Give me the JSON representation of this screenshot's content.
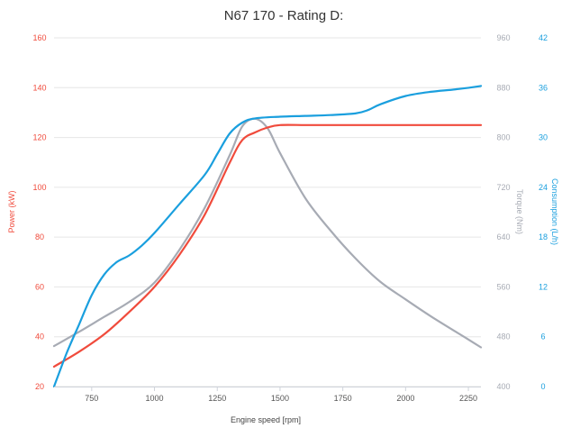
{
  "chart_data": {
    "type": "line",
    "title": "N67 170 - Rating D:",
    "xlabel": "Engine speed [rpm]",
    "x_ticks": [
      750,
      1000,
      1250,
      1500,
      1750,
      2000,
      2250
    ],
    "xlim": [
      600,
      2300
    ],
    "grid": true,
    "axes": {
      "power": {
        "label": "Power (kW)",
        "min": 20,
        "max": 160,
        "ticks": [
          20,
          40,
          60,
          80,
          100,
          120,
          140,
          160
        ],
        "color": "#f04b3c"
      },
      "torque": {
        "label": "Torque (Nm)",
        "min": 400,
        "max": 960,
        "ticks": [
          400,
          480,
          560,
          640,
          720,
          800,
          880,
          960
        ],
        "color": "#a7abb4"
      },
      "consumption": {
        "label": "Consumption (L/h)",
        "min": 0,
        "max": 42,
        "ticks": [
          0,
          6,
          12,
          18,
          24,
          30,
          36,
          42
        ],
        "color": "#1a9fde"
      }
    },
    "series": [
      {
        "key": "torque",
        "axis": "torque",
        "color": "#a7abb4",
        "x": [
          600,
          700,
          800,
          900,
          1000,
          1100,
          1200,
          1300,
          1350,
          1400,
          1450,
          1500,
          1600,
          1700,
          1800,
          1900,
          2000,
          2100,
          2200,
          2300
        ],
        "y": [
          465,
          488,
          512,
          536,
          567,
          620,
          687,
          772,
          818,
          830,
          815,
          775,
          703,
          651,
          606,
          568,
          540,
          513,
          488,
          463
        ]
      },
      {
        "key": "power",
        "axis": "power",
        "color": "#f04b3c",
        "x": [
          600,
          700,
          800,
          900,
          1000,
          1100,
          1200,
          1300,
          1350,
          1400,
          1450,
          1500,
          1600,
          1700,
          1800,
          1900,
          2000,
          2100,
          2200,
          2300
        ],
        "y": [
          28,
          34,
          41,
          50,
          60,
          73,
          89,
          110,
          119,
          122,
          124,
          125,
          125,
          125,
          125,
          125,
          125,
          125,
          125,
          125
        ]
      },
      {
        "key": "consumption",
        "axis": "consumption",
        "color": "#1a9fde",
        "x": [
          600,
          650,
          700,
          750,
          800,
          850,
          900,
          950,
          1000,
          1100,
          1200,
          1250,
          1300,
          1350,
          1400,
          1500,
          1600,
          1700,
          1800,
          1850,
          1900,
          2000,
          2100,
          2200,
          2300
        ],
        "y": [
          0,
          4,
          7.5,
          11,
          13.5,
          15,
          15.8,
          17,
          18.5,
          22,
          25.5,
          28,
          30.5,
          31.8,
          32.3,
          32.5,
          32.6,
          32.7,
          32.9,
          33.3,
          34,
          35,
          35.5,
          35.8,
          36.2
        ]
      }
    ]
  }
}
